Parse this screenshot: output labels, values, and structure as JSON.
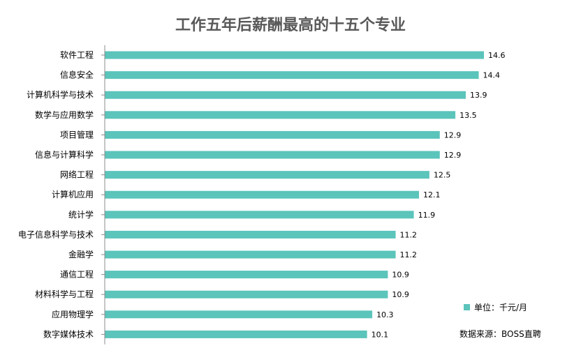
{
  "chart_data": {
    "type": "bar",
    "orientation": "horizontal",
    "title": "工作五年后薪酬最高的十五个专业",
    "categories": [
      "软件工程",
      "信息安全",
      "计算机科学与技术",
      "数学与应用数学",
      "项目管理",
      "信息与计算科学",
      "网络工程",
      "计算机应用",
      "统计学",
      "电子信息科学与技术",
      "金融学",
      "通信工程",
      "材料科学与工程",
      "应用物理学",
      "数字媒体技术"
    ],
    "values": [
      14.6,
      14.4,
      13.9,
      13.5,
      12.9,
      12.9,
      12.5,
      12.1,
      11.9,
      11.2,
      11.2,
      10.9,
      10.9,
      10.3,
      10.1
    ],
    "value_labels": [
      "14.6",
      "14.4",
      "13.9",
      "13.5",
      "12.9",
      "12.9",
      "12.5",
      "12.1",
      "11.9",
      "11.2",
      "11.2",
      "10.9",
      "10.9",
      "10.3",
      "10.1"
    ],
    "xlim": [
      0,
      14.6
    ],
    "grid": false,
    "bar_color": "#5bc4bb",
    "legend": {
      "label": "单位：千元/月",
      "placement": "bottom-right"
    },
    "source": "数据来源：BOSS直聘"
  }
}
